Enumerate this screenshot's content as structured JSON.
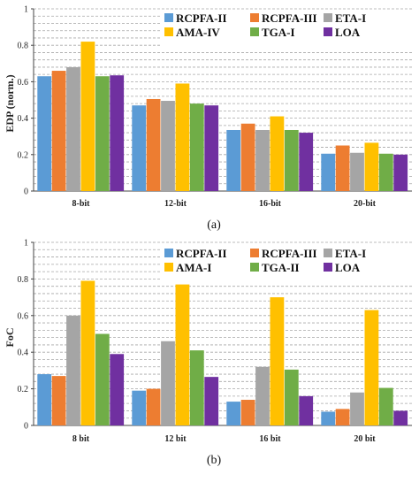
{
  "chart_data": [
    {
      "type": "bar",
      "caption": "(a)",
      "xlabel": "",
      "ylabel": "EDP (norm.)",
      "ylim": [
        0,
        1
      ],
      "yticks": [
        "0",
        "0.2",
        "0.4",
        "0.6",
        "0.8",
        "1"
      ],
      "grid": true,
      "legend_position": "top-right",
      "categories": [
        "8-bit",
        "12-bit",
        "16-bit",
        "20-bit"
      ],
      "series": [
        {
          "name": "RCPFA-II",
          "color": "#5b9bd5",
          "values": [
            0.63,
            0.47,
            0.335,
            0.205
          ]
        },
        {
          "name": "RCPFA-III",
          "color": "#ed7d31",
          "values": [
            0.66,
            0.505,
            0.37,
            0.25
          ]
        },
        {
          "name": "ETA-I",
          "color": "#a5a5a5",
          "values": [
            0.68,
            0.495,
            0.335,
            0.21
          ]
        },
        {
          "name": "AMA-IV",
          "color": "#ffc000",
          "values": [
            0.82,
            0.59,
            0.41,
            0.265
          ]
        },
        {
          "name": "TGA-I",
          "color": "#70ad47",
          "values": [
            0.63,
            0.48,
            0.335,
            0.205
          ]
        },
        {
          "name": "LOA",
          "color": "#7030a0",
          "values": [
            0.635,
            0.47,
            0.32,
            0.2
          ]
        }
      ]
    },
    {
      "type": "bar",
      "caption": "(b)",
      "xlabel": "",
      "ylabel": "FoC",
      "ylim": [
        0,
        1
      ],
      "yticks": [
        "0",
        "0.2",
        "0.4",
        "0.6",
        "0.8",
        "1"
      ],
      "grid": true,
      "legend_position": "top-right",
      "categories": [
        "8 bit",
        "12 bit",
        "16 bit",
        "20 bit"
      ],
      "series": [
        {
          "name": "RCPFA-II",
          "color": "#5b9bd5",
          "values": [
            0.28,
            0.19,
            0.13,
            0.075
          ]
        },
        {
          "name": "RCPFA-III",
          "color": "#ed7d31",
          "values": [
            0.27,
            0.2,
            0.14,
            0.09
          ]
        },
        {
          "name": "ETA-I",
          "color": "#a5a5a5",
          "values": [
            0.6,
            0.46,
            0.32,
            0.18
          ]
        },
        {
          "name": "AMA-I",
          "color": "#ffc000",
          "values": [
            0.79,
            0.77,
            0.7,
            0.63
          ]
        },
        {
          "name": "TGA-II",
          "color": "#70ad47",
          "values": [
            0.5,
            0.41,
            0.305,
            0.205
          ]
        },
        {
          "name": "LOA",
          "color": "#7030a0",
          "values": [
            0.39,
            0.265,
            0.16,
            0.08
          ]
        }
      ]
    }
  ]
}
